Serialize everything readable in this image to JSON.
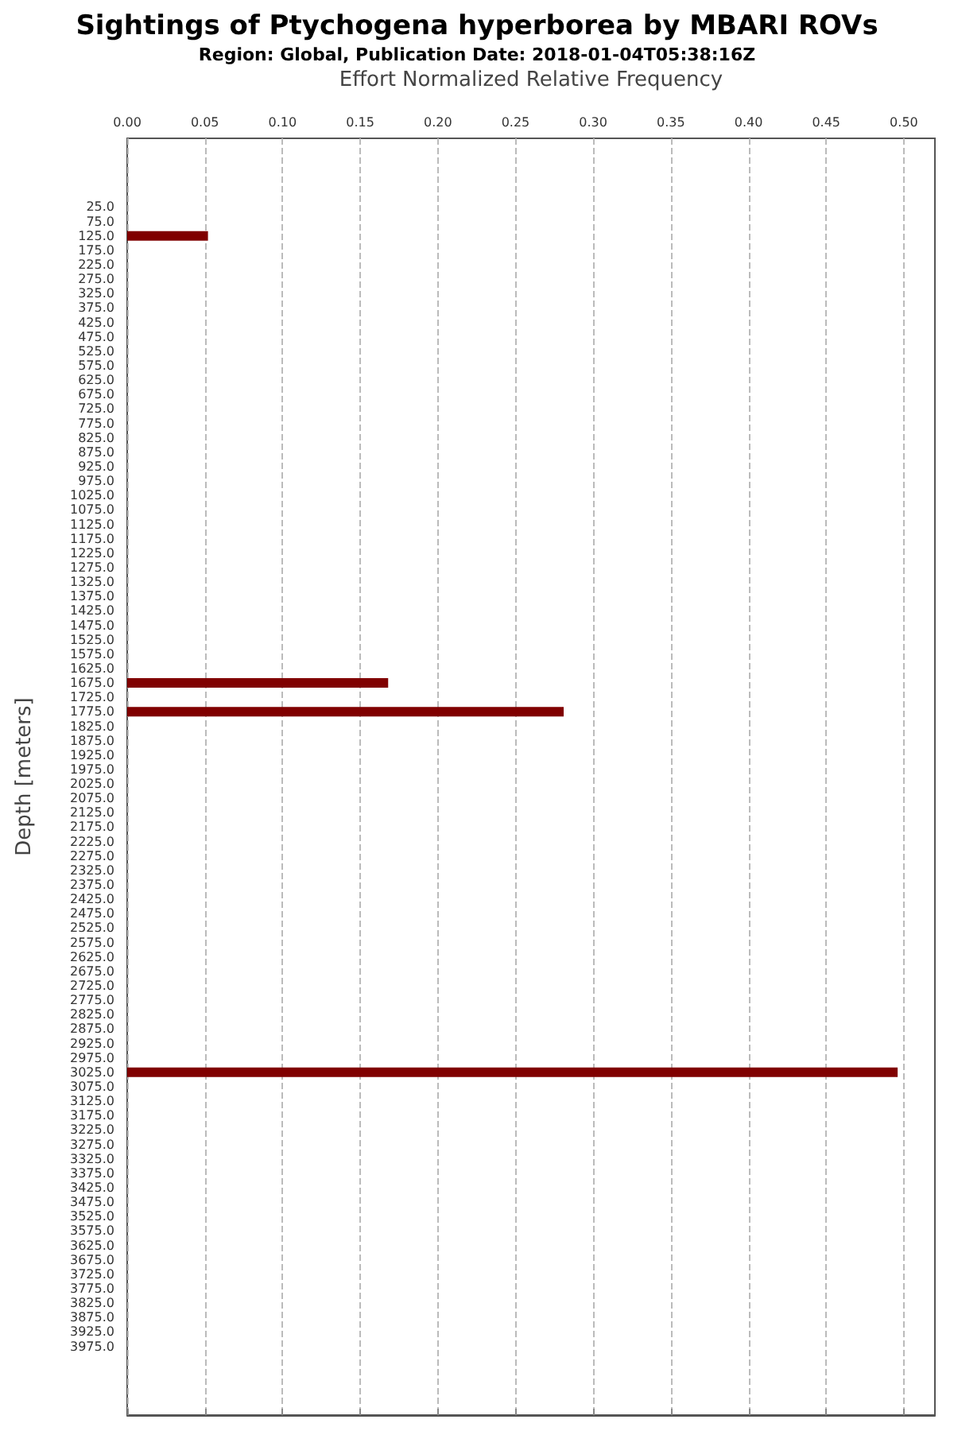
{
  "chart_data": {
    "type": "bar",
    "orientation": "horizontal",
    "title": "Sightings of Ptychogena hyperborea by MBARI ROVs",
    "subtitle": "Region: Global, Publication Date: 2018-01-04T05:38:16Z",
    "xlabel": "Effort Normalized Relative Frequency",
    "ylabel": "Depth [meters]",
    "categories": [
      "25.0",
      "75.0",
      "125.0",
      "175.0",
      "225.0",
      "275.0",
      "325.0",
      "375.0",
      "425.0",
      "475.0",
      "525.0",
      "575.0",
      "625.0",
      "675.0",
      "725.0",
      "775.0",
      "825.0",
      "875.0",
      "925.0",
      "975.0",
      "1025.0",
      "1075.0",
      "1125.0",
      "1175.0",
      "1225.0",
      "1275.0",
      "1325.0",
      "1375.0",
      "1425.0",
      "1475.0",
      "1525.0",
      "1575.0",
      "1625.0",
      "1675.0",
      "1725.0",
      "1775.0",
      "1825.0",
      "1875.0",
      "1925.0",
      "1975.0",
      "2025.0",
      "2075.0",
      "2125.0",
      "2175.0",
      "2225.0",
      "2275.0",
      "2325.0",
      "2375.0",
      "2425.0",
      "2475.0",
      "2525.0",
      "2575.0",
      "2625.0",
      "2675.0",
      "2725.0",
      "2775.0",
      "2825.0",
      "2875.0",
      "2925.0",
      "2975.0",
      "3025.0",
      "3075.0",
      "3125.0",
      "3175.0",
      "3225.0",
      "3275.0",
      "3325.0",
      "3375.0",
      "3425.0",
      "3475.0",
      "3525.0",
      "3575.0",
      "3625.0",
      "3675.0",
      "3725.0",
      "3775.0",
      "3825.0",
      "3875.0",
      "3925.0",
      "3975.0"
    ],
    "values": [
      0,
      0,
      0.052,
      0,
      0,
      0,
      0,
      0,
      0,
      0,
      0,
      0,
      0,
      0,
      0,
      0,
      0,
      0,
      0,
      0,
      0,
      0,
      0,
      0,
      0,
      0,
      0,
      0,
      0,
      0,
      0,
      0,
      0,
      0.168,
      0,
      0.281,
      0,
      0,
      0,
      0,
      0,
      0,
      0,
      0,
      0,
      0,
      0,
      0,
      0,
      0,
      0,
      0,
      0,
      0,
      0,
      0,
      0,
      0,
      0,
      0,
      0.496,
      0,
      0,
      0,
      0,
      0,
      0,
      0,
      0,
      0,
      0,
      0,
      0,
      0,
      0,
      0,
      0,
      0,
      0,
      0
    ],
    "color": "#800000",
    "xlim": [
      0,
      0.52
    ],
    "xticks": [
      {
        "value": 0,
        "label": "0.00"
      },
      {
        "value": 0.05,
        "label": "0.05"
      },
      {
        "value": 0.1,
        "label": "0.10"
      },
      {
        "value": 0.15,
        "label": "0.15"
      },
      {
        "value": 0.2,
        "label": "0.20"
      },
      {
        "value": 0.25,
        "label": "0.25"
      },
      {
        "value": 0.3,
        "label": "0.30"
      },
      {
        "value": 0.35,
        "label": "0.35"
      },
      {
        "value": 0.4,
        "label": "0.40"
      },
      {
        "value": 0.45,
        "label": "0.45"
      },
      {
        "value": 0.5,
        "label": "0.50"
      }
    ],
    "grid": "x"
  }
}
